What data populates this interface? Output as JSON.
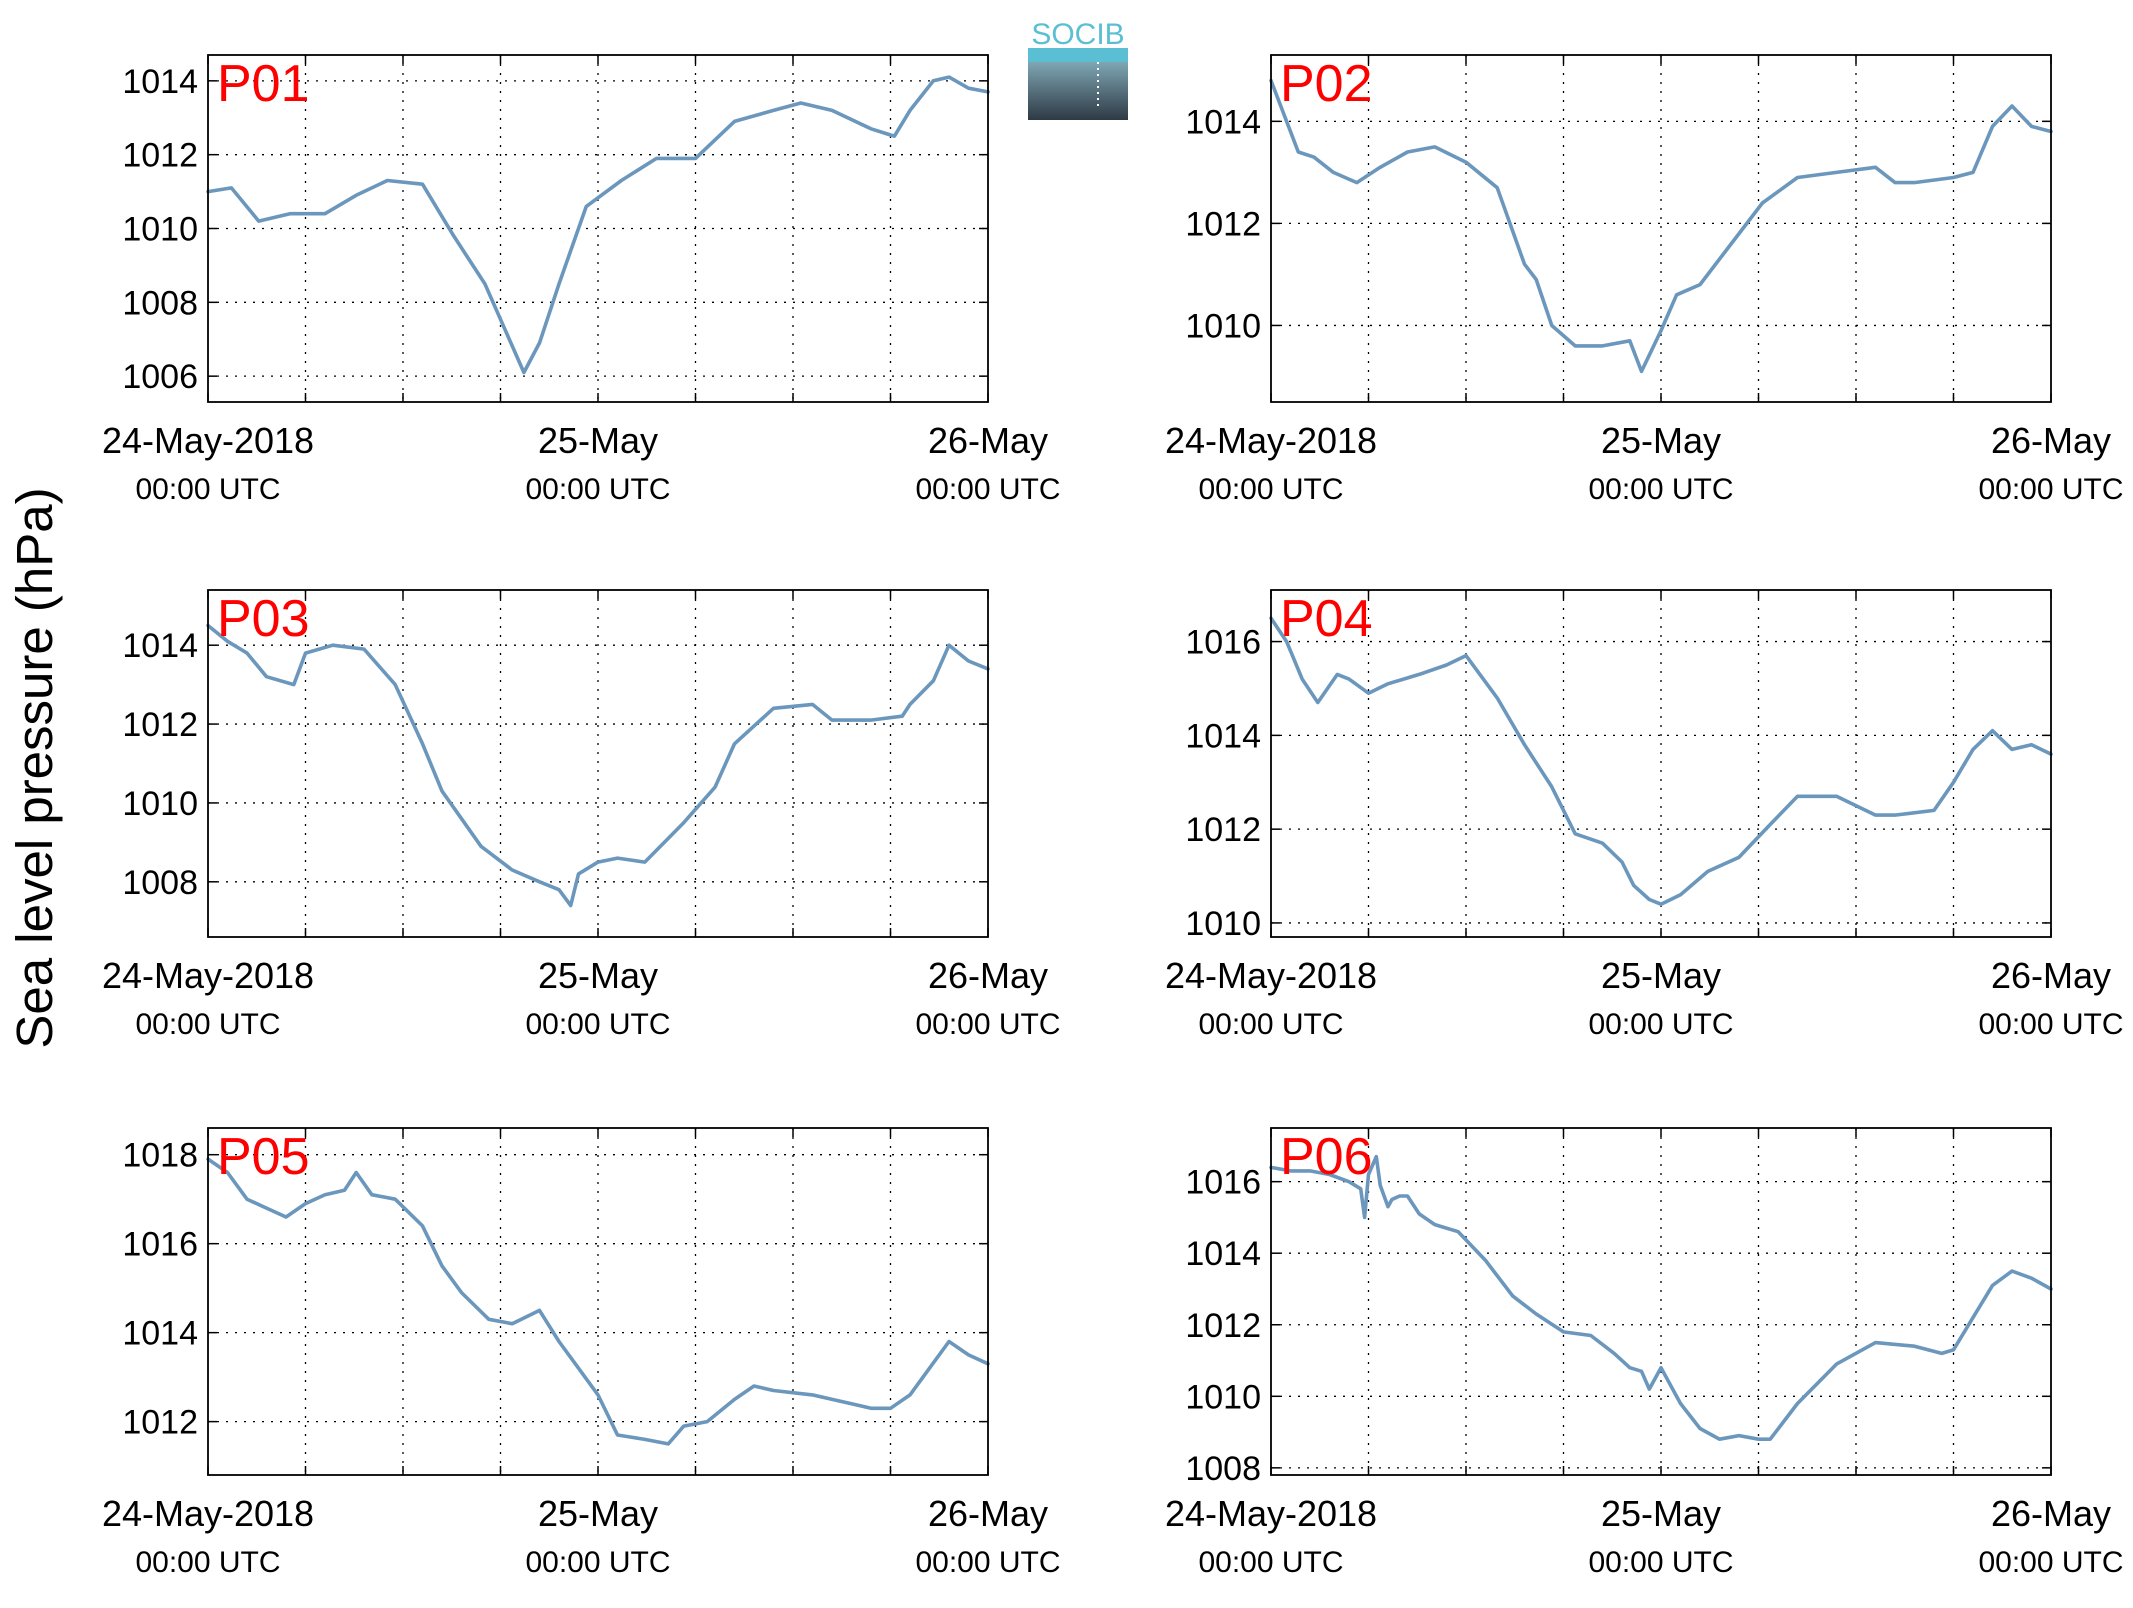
{
  "figure": {
    "ylabel": "Sea level pressure (hPa)",
    "logo_text": "SOCIB",
    "x_ticks": [
      {
        "day": 0,
        "date": "24-May-2018",
        "time": "00:00 UTC"
      },
      {
        "day": 1,
        "date": "25-May",
        "time": "00:00 UTC"
      },
      {
        "day": 2,
        "date": "26-May",
        "time": "00:00 UTC"
      }
    ],
    "colors": {
      "line": "#6b97bd",
      "panel_label": "#ff0000",
      "axis": "#000000",
      "logo_top": "#5bbfd4",
      "logo_bottom": "#2e3a44"
    }
  },
  "chart_data": [
    {
      "type": "line",
      "label": "P01",
      "xlim": [
        0,
        2
      ],
      "ylim": [
        1005.3,
        1014.7
      ],
      "yticks": [
        1006,
        1008,
        1010,
        1012,
        1014
      ],
      "grid": true,
      "x": [
        0,
        0.06,
        0.13,
        0.21,
        0.3,
        0.38,
        0.46,
        0.55,
        0.63,
        0.71,
        0.76,
        0.81,
        0.85,
        0.9,
        0.97,
        1.06,
        1.15,
        1.25,
        1.35,
        1.45,
        1.52,
        1.6,
        1.7,
        1.76,
        1.8,
        1.86,
        1.9,
        1.95,
        2
      ],
      "y": [
        1011,
        1011.1,
        1010.2,
        1010.4,
        1010.4,
        1010.9,
        1011.3,
        1011.2,
        1009.8,
        1008.5,
        1007.3,
        1006.1,
        1006.9,
        1008.5,
        1010.6,
        1011.3,
        1011.9,
        1011.9,
        1012.9,
        1013.2,
        1013.4,
        1013.2,
        1012.7,
        1012.5,
        1013.2,
        1014.0,
        1014.1,
        1013.8,
        1013.7
      ]
    },
    {
      "type": "line",
      "label": "P02",
      "xlim": [
        0,
        2
      ],
      "ylim": [
        1008.5,
        1015.3
      ],
      "yticks": [
        1010,
        1012,
        1014
      ],
      "grid": true,
      "x": [
        0,
        0.03,
        0.07,
        0.11,
        0.16,
        0.22,
        0.28,
        0.35,
        0.42,
        0.5,
        0.58,
        0.65,
        0.68,
        0.72,
        0.78,
        0.85,
        0.92,
        0.95,
        1.0,
        1.04,
        1.1,
        1.2,
        1.26,
        1.35,
        1.45,
        1.55,
        1.6,
        1.65,
        1.75,
        1.8,
        1.85,
        1.9,
        1.95,
        2
      ],
      "y": [
        1014.8,
        1014.2,
        1013.4,
        1013.3,
        1013.0,
        1012.8,
        1013.1,
        1013.4,
        1013.5,
        1013.2,
        1012.7,
        1011.2,
        1010.9,
        1010.0,
        1009.6,
        1009.6,
        1009.7,
        1009.1,
        1009.9,
        1010.6,
        1010.8,
        1011.8,
        1012.4,
        1012.9,
        1013.0,
        1013.1,
        1012.8,
        1012.8,
        1012.9,
        1013.0,
        1013.9,
        1014.3,
        1013.9,
        1013.8
      ]
    },
    {
      "type": "line",
      "label": "P03",
      "xlim": [
        0,
        2
      ],
      "ylim": [
        1006.6,
        1015.4
      ],
      "yticks": [
        1008,
        1010,
        1012,
        1014
      ],
      "grid": true,
      "x": [
        0,
        0.05,
        0.1,
        0.15,
        0.22,
        0.25,
        0.32,
        0.4,
        0.48,
        0.55,
        0.6,
        0.65,
        0.7,
        0.78,
        0.85,
        0.9,
        0.93,
        0.95,
        1.0,
        1.05,
        1.12,
        1.22,
        1.3,
        1.35,
        1.45,
        1.55,
        1.6,
        1.7,
        1.78,
        1.8,
        1.86,
        1.9,
        1.95,
        2
      ],
      "y": [
        1014.5,
        1014.1,
        1013.8,
        1013.2,
        1013.0,
        1013.8,
        1014.0,
        1013.9,
        1013.0,
        1011.5,
        1010.3,
        1009.6,
        1008.9,
        1008.3,
        1008.0,
        1007.8,
        1007.4,
        1008.2,
        1008.5,
        1008.6,
        1008.5,
        1009.5,
        1010.4,
        1011.5,
        1012.4,
        1012.5,
        1012.1,
        1012.1,
        1012.2,
        1012.5,
        1013.1,
        1014.0,
        1013.6,
        1013.4
      ]
    },
    {
      "type": "line",
      "label": "P04",
      "xlim": [
        0,
        2
      ],
      "ylim": [
        1009.7,
        1017.1
      ],
      "yticks": [
        1010,
        1012,
        1014,
        1016
      ],
      "grid": true,
      "x": [
        0,
        0.04,
        0.08,
        0.12,
        0.17,
        0.2,
        0.25,
        0.3,
        0.38,
        0.45,
        0.5,
        0.58,
        0.65,
        0.72,
        0.78,
        0.85,
        0.9,
        0.93,
        0.97,
        1.0,
        1.05,
        1.12,
        1.2,
        1.28,
        1.35,
        1.45,
        1.55,
        1.6,
        1.7,
        1.75,
        1.8,
        1.85,
        1.9,
        1.95,
        2
      ],
      "y": [
        1016.5,
        1016.0,
        1015.2,
        1014.7,
        1015.3,
        1015.2,
        1014.9,
        1015.1,
        1015.3,
        1015.5,
        1015.7,
        1014.8,
        1013.8,
        1012.9,
        1011.9,
        1011.7,
        1011.3,
        1010.8,
        1010.5,
        1010.4,
        1010.6,
        1011.1,
        1011.4,
        1012.1,
        1012.7,
        1012.7,
        1012.3,
        1012.3,
        1012.4,
        1013.0,
        1013.7,
        1014.1,
        1013.7,
        1013.8,
        1013.6
      ]
    },
    {
      "type": "line",
      "label": "P05",
      "xlim": [
        0,
        2
      ],
      "ylim": [
        1010.8,
        1018.6
      ],
      "yticks": [
        1012,
        1014,
        1016,
        1018
      ],
      "grid": true,
      "x": [
        0,
        0.05,
        0.1,
        0.15,
        0.2,
        0.25,
        0.3,
        0.35,
        0.38,
        0.42,
        0.48,
        0.55,
        0.6,
        0.65,
        0.72,
        0.78,
        0.85,
        0.9,
        0.95,
        1.0,
        1.05,
        1.12,
        1.18,
        1.22,
        1.28,
        1.35,
        1.4,
        1.45,
        1.55,
        1.65,
        1.7,
        1.75,
        1.8,
        1.85,
        1.9,
        1.95,
        2
      ],
      "y": [
        1017.9,
        1017.6,
        1017.0,
        1016.8,
        1016.6,
        1016.9,
        1017.1,
        1017.2,
        1017.6,
        1017.1,
        1017.0,
        1016.4,
        1015.5,
        1014.9,
        1014.3,
        1014.2,
        1014.5,
        1013.8,
        1013.2,
        1012.6,
        1011.7,
        1011.6,
        1011.5,
        1011.9,
        1012.0,
        1012.5,
        1012.8,
        1012.7,
        1012.6,
        1012.4,
        1012.3,
        1012.3,
        1012.6,
        1013.2,
        1013.8,
        1013.5,
        1013.3
      ]
    },
    {
      "type": "line",
      "label": "P06",
      "xlim": [
        0,
        2
      ],
      "ylim": [
        1007.8,
        1017.5
      ],
      "yticks": [
        1008,
        1010,
        1012,
        1014,
        1016
      ],
      "grid": true,
      "x": [
        0,
        0.05,
        0.1,
        0.15,
        0.2,
        0.23,
        0.24,
        0.25,
        0.27,
        0.28,
        0.3,
        0.31,
        0.33,
        0.35,
        0.38,
        0.42,
        0.48,
        0.55,
        0.62,
        0.68,
        0.75,
        0.82,
        0.88,
        0.92,
        0.95,
        0.97,
        1.0,
        1.05,
        1.1,
        1.15,
        1.2,
        1.25,
        1.28,
        1.35,
        1.45,
        1.55,
        1.65,
        1.72,
        1.75,
        1.8,
        1.85,
        1.9,
        1.95,
        2
      ],
      "y": [
        1016.4,
        1016.3,
        1016.3,
        1016.2,
        1016.0,
        1015.8,
        1015.0,
        1016.2,
        1016.7,
        1015.9,
        1015.3,
        1015.5,
        1015.6,
        1015.6,
        1015.1,
        1014.8,
        1014.6,
        1013.8,
        1012.8,
        1012.3,
        1011.8,
        1011.7,
        1011.2,
        1010.8,
        1010.7,
        1010.2,
        1010.8,
        1009.8,
        1009.1,
        1008.8,
        1008.9,
        1008.8,
        1008.8,
        1009.8,
        1010.9,
        1011.5,
        1011.4,
        1011.2,
        1011.3,
        1012.2,
        1013.1,
        1013.5,
        1013.3,
        1013.0
      ]
    }
  ]
}
